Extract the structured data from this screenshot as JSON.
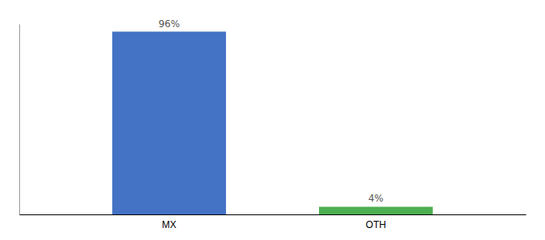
{
  "chart_data": {
    "type": "bar",
    "categories": [
      "MX",
      "OTH"
    ],
    "values": [
      96,
      4
    ],
    "value_labels": [
      "96%",
      "4%"
    ],
    "colors": [
      "#4472c4",
      "#4caf50"
    ],
    "ylim": [
      0,
      100
    ],
    "data_labels": true,
    "tick_labels": "x"
  }
}
